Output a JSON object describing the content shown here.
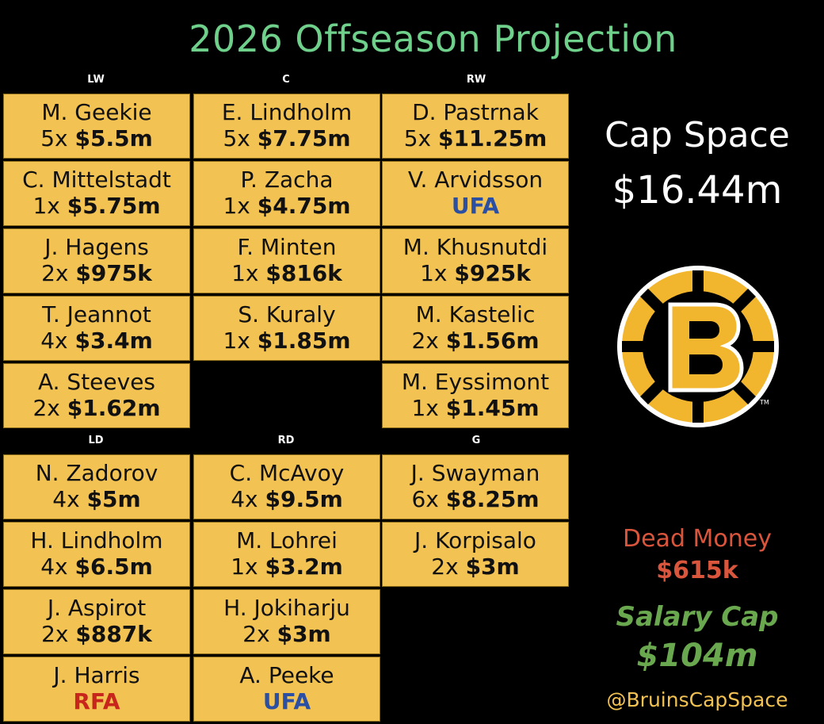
{
  "title": "2026 Offseason Projection",
  "forward_headers": {
    "lw": "LW",
    "c": "C",
    "rw": "RW"
  },
  "defense_headers": {
    "ld": "LD",
    "rd": "RD",
    "g": "G"
  },
  "lw": [
    {
      "name": "M. Geekie",
      "years": "5x",
      "amount": "$5.5m"
    },
    {
      "name": "C. Mittelstadt",
      "years": "1x",
      "amount": "$5.75m"
    },
    {
      "name": "J. Hagens",
      "years": "2x",
      "amount": "$975k"
    },
    {
      "name": "T. Jeannot",
      "years": "4x",
      "amount": "$3.4m"
    },
    {
      "name": "A. Steeves",
      "years": "2x",
      "amount": "$1.62m"
    }
  ],
  "c": [
    {
      "name": "E. Lindholm",
      "years": "5x",
      "amount": "$7.75m"
    },
    {
      "name": "P. Zacha",
      "years": "1x",
      "amount": "$4.75m"
    },
    {
      "name": "F. Minten",
      "years": "1x",
      "amount": "$816k"
    },
    {
      "name": "S. Kuraly",
      "years": "1x",
      "amount": "$1.85m"
    }
  ],
  "rw": [
    {
      "name": "D. Pastrnak",
      "years": "5x",
      "amount": "$11.25m"
    },
    {
      "name": "V. Arvidsson",
      "status": "UFA"
    },
    {
      "name": "M. Khusnutdi",
      "years": "1x",
      "amount": "$925k"
    },
    {
      "name": "M. Kastelic",
      "years": "2x",
      "amount": "$1.56m"
    },
    {
      "name": "M. Eyssimont",
      "years": "1x",
      "amount": "$1.45m"
    }
  ],
  "ld": [
    {
      "name": "N. Zadorov",
      "years": "4x",
      "amount": "$5m"
    },
    {
      "name": "H. Lindholm",
      "years": "4x",
      "amount": "$6.5m"
    },
    {
      "name": "J. Aspirot",
      "years": "2x",
      "amount": "$887k"
    },
    {
      "name": "J. Harris",
      "status": "RFA"
    }
  ],
  "rd": [
    {
      "name": "C. McAvoy",
      "years": "4x",
      "amount": "$9.5m"
    },
    {
      "name": "M. Lohrei",
      "years": "1x",
      "amount": "$3.2m"
    },
    {
      "name": "H. Jokiharju",
      "years": "2x",
      "amount": "$3m"
    },
    {
      "name": "A. Peeke",
      "status": "UFA"
    }
  ],
  "g": [
    {
      "name": "J. Swayman",
      "years": "6x",
      "amount": "$8.25m"
    },
    {
      "name": "J. Korpisalo",
      "years": "2x",
      "amount": "$3m"
    }
  ],
  "summary": {
    "cap_space_label": "Cap Space",
    "cap_space_value": "$16.44m",
    "dead_money_label": "Dead Money",
    "dead_money_value": "$615k",
    "salary_cap_label": "Salary Cap",
    "salary_cap_value": "$104m",
    "handle": "@BruinsCapSpace"
  },
  "logo": {
    "icon": "bruins-b-logo",
    "colors": {
      "gold": "#f2b52e",
      "black": "#000000",
      "white": "#ffffff"
    }
  },
  "colors": {
    "title": "#6fd08c",
    "cell": "#f2c252",
    "ufa": "#2a4fa3",
    "rfa": "#c8261c",
    "dead_money": "#d9553c",
    "salary_cap": "#6aa84f",
    "handle": "#f2c252"
  }
}
